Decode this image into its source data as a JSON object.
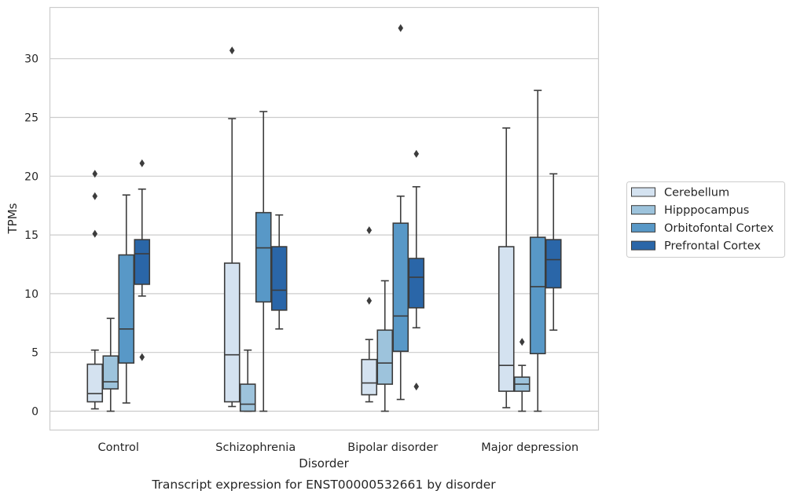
{
  "chart_data": {
    "type": "box",
    "caption": "Transcript expression for ENST00000532661 by disorder",
    "xlabel": "Disorder",
    "ylabel": "TPMs",
    "ylim": [
      -1.6,
      34.3
    ],
    "yticks": [
      0,
      5,
      10,
      15,
      20,
      25,
      30
    ],
    "grid": true,
    "legend_position": "right",
    "categories": [
      "Control",
      "Schizophrenia",
      "Bipolar disorder",
      "Major depression"
    ],
    "series": [
      {
        "name": "Cerebellum",
        "color": "#d4e2f0",
        "boxes": [
          {
            "whisker_low": 0.2,
            "q1": 0.8,
            "median": 1.5,
            "q3": 4.0,
            "whisker_high": 5.2,
            "outliers": [
              20.2,
              18.3,
              15.1
            ]
          },
          {
            "whisker_low": 0.4,
            "q1": 0.8,
            "median": 4.8,
            "q3": 12.6,
            "whisker_high": 24.9,
            "outliers": [
              30.7
            ]
          },
          {
            "whisker_low": 0.8,
            "q1": 1.4,
            "median": 2.4,
            "q3": 4.4,
            "whisker_high": 6.1,
            "outliers": [
              15.4,
              9.4
            ]
          },
          {
            "whisker_low": 0.3,
            "q1": 1.7,
            "median": 3.9,
            "q3": 14.0,
            "whisker_high": 24.1,
            "outliers": []
          }
        ]
      },
      {
        "name": "Hipppocampus",
        "color": "#9dc3dc",
        "boxes": [
          {
            "whisker_low": 0.0,
            "q1": 1.9,
            "median": 2.5,
            "q3": 4.7,
            "whisker_high": 7.9,
            "outliers": []
          },
          {
            "whisker_low": 0.0,
            "q1": 0.0,
            "median": 0.6,
            "q3": 2.3,
            "whisker_high": 5.2,
            "outliers": []
          },
          {
            "whisker_low": 0.0,
            "q1": 2.3,
            "median": 4.1,
            "q3": 6.9,
            "whisker_high": 11.1,
            "outliers": []
          },
          {
            "whisker_low": 0.0,
            "q1": 1.7,
            "median": 2.3,
            "q3": 2.9,
            "whisker_high": 3.9,
            "outliers": [
              5.9
            ]
          }
        ]
      },
      {
        "name": "Orbitofontal Cortex",
        "color": "#5898c7",
        "boxes": [
          {
            "whisker_low": 0.7,
            "q1": 4.1,
            "median": 7.0,
            "q3": 13.3,
            "whisker_high": 18.4,
            "outliers": []
          },
          {
            "whisker_low": 0.0,
            "q1": 9.3,
            "median": 13.9,
            "q3": 16.9,
            "whisker_high": 25.5,
            "outliers": []
          },
          {
            "whisker_low": 1.0,
            "q1": 5.1,
            "median": 8.1,
            "q3": 16.0,
            "whisker_high": 18.3,
            "outliers": [
              32.6
            ]
          },
          {
            "whisker_low": 0.0,
            "q1": 4.9,
            "median": 10.6,
            "q3": 14.8,
            "whisker_high": 27.3,
            "outliers": []
          }
        ]
      },
      {
        "name": "Prefrontal Cortex",
        "color": "#2a66a8",
        "boxes": [
          {
            "whisker_low": 9.8,
            "q1": 10.8,
            "median": 13.4,
            "q3": 14.6,
            "whisker_high": 18.9,
            "outliers": [
              21.1,
              4.6
            ]
          },
          {
            "whisker_low": 7.0,
            "q1": 8.6,
            "median": 10.3,
            "q3": 14.0,
            "whisker_high": 16.7,
            "outliers": []
          },
          {
            "whisker_low": 7.1,
            "q1": 8.8,
            "median": 11.4,
            "q3": 13.0,
            "whisker_high": 19.1,
            "outliers": [
              21.9,
              2.1
            ]
          },
          {
            "whisker_low": 6.9,
            "q1": 10.5,
            "median": 12.9,
            "q3": 14.6,
            "whisker_high": 20.2,
            "outliers": []
          }
        ]
      }
    ]
  }
}
